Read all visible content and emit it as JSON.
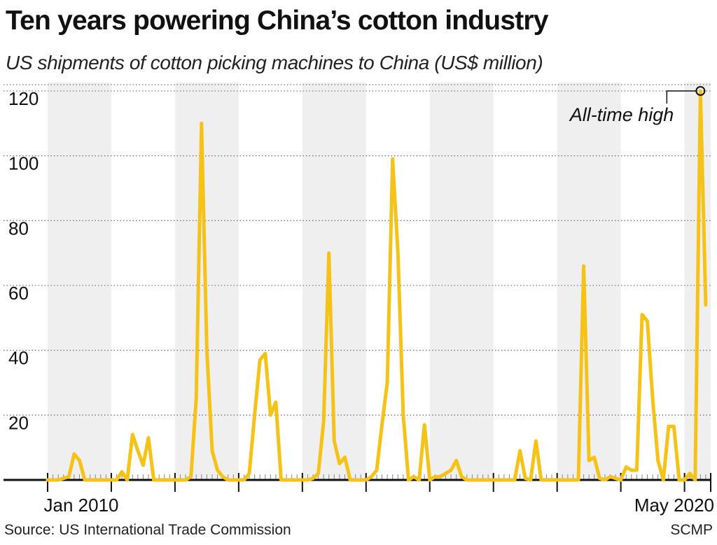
{
  "title": "Ten years powering China’s cotton industry",
  "subtitle": "US shipments of cotton picking machines to China (US$ million)",
  "source": "Source: US International Trade Commission",
  "credit": "SCMP",
  "chart_data": {
    "type": "line",
    "title": "Ten years powering China’s cotton industry",
    "subtitle": "US shipments of cotton picking machines to China (US$ million)",
    "xlabel": "",
    "ylabel": "",
    "x_start_label": "Jan 2010",
    "x_end_label": "May 2020",
    "x": [
      "2010-01",
      "2010-02",
      "2010-03",
      "2010-04",
      "2010-05",
      "2010-06",
      "2010-07",
      "2010-08",
      "2010-09",
      "2010-10",
      "2010-11",
      "2010-12",
      "2011-01",
      "2011-02",
      "2011-03",
      "2011-04",
      "2011-05",
      "2011-06",
      "2011-07",
      "2011-08",
      "2011-09",
      "2011-10",
      "2011-11",
      "2011-12",
      "2012-01",
      "2012-02",
      "2012-03",
      "2012-04",
      "2012-05",
      "2012-06",
      "2012-07",
      "2012-08",
      "2012-09",
      "2012-10",
      "2012-11",
      "2012-12",
      "2013-01",
      "2013-02",
      "2013-03",
      "2013-04",
      "2013-05",
      "2013-06",
      "2013-07",
      "2013-08",
      "2013-09",
      "2013-10",
      "2013-11",
      "2013-12",
      "2014-01",
      "2014-02",
      "2014-03",
      "2014-04",
      "2014-05",
      "2014-06",
      "2014-07",
      "2014-08",
      "2014-09",
      "2014-10",
      "2014-11",
      "2014-12",
      "2015-01",
      "2015-02",
      "2015-03",
      "2015-04",
      "2015-05",
      "2015-06",
      "2015-07",
      "2015-08",
      "2015-09",
      "2015-10",
      "2015-11",
      "2015-12",
      "2016-01",
      "2016-02",
      "2016-03",
      "2016-04",
      "2016-05",
      "2016-06",
      "2016-07",
      "2016-08",
      "2016-09",
      "2016-10",
      "2016-11",
      "2016-12",
      "2017-01",
      "2017-02",
      "2017-03",
      "2017-04",
      "2017-05",
      "2017-06",
      "2017-07",
      "2017-08",
      "2017-09",
      "2017-10",
      "2017-11",
      "2017-12",
      "2018-01",
      "2018-02",
      "2018-03",
      "2018-04",
      "2018-05",
      "2018-06",
      "2018-07",
      "2018-08",
      "2018-09",
      "2018-10",
      "2018-11",
      "2018-12",
      "2019-01",
      "2019-02",
      "2019-03",
      "2019-04",
      "2019-05",
      "2019-06",
      "2019-07",
      "2019-08",
      "2019-09",
      "2019-10",
      "2019-11",
      "2019-12",
      "2020-01",
      "2020-02",
      "2020-03",
      "2020-04",
      "2020-05"
    ],
    "values": [
      0,
      0,
      0,
      0.5,
      1,
      8,
      6,
      0,
      0,
      0,
      0,
      0,
      0,
      0,
      2.5,
      0,
      14,
      9,
      4.5,
      13,
      0,
      0,
      0,
      0,
      0,
      0,
      0,
      1,
      25,
      110,
      40,
      9,
      3,
      1,
      0,
      0,
      0,
      0,
      2,
      20,
      37,
      39,
      20,
      24,
      0,
      0,
      0,
      0,
      0,
      0,
      0.5,
      2,
      18,
      70,
      12,
      5,
      7,
      0,
      0,
      0,
      0,
      1,
      3,
      17,
      30,
      99,
      70,
      20,
      0,
      1,
      0,
      17,
      0,
      1,
      1,
      2,
      3,
      6,
      1,
      0,
      0,
      0,
      0,
      0,
      0,
      0,
      0,
      0,
      0,
      9,
      0.5,
      0,
      12,
      0,
      0,
      0,
      0,
      0,
      0,
      0,
      0,
      66,
      6,
      7,
      0.5,
      0,
      1,
      0.5,
      0,
      4,
      3,
      3,
      51,
      49,
      25,
      6,
      0,
      16.5,
      16.5,
      0,
      0,
      2,
      0,
      120,
      54
    ],
    "ylim": [
      0,
      120
    ],
    "yticks": [
      20,
      40,
      60,
      80,
      100,
      120
    ],
    "grid": true,
    "grid_style": "dotted horizontal",
    "alternating_year_bands": true,
    "annotation": {
      "text": "All-time high",
      "x": "2020-04",
      "y": 120
    },
    "colors": {
      "line": "#f5c218",
      "band": "#efefef",
      "axis": "#111111"
    }
  }
}
